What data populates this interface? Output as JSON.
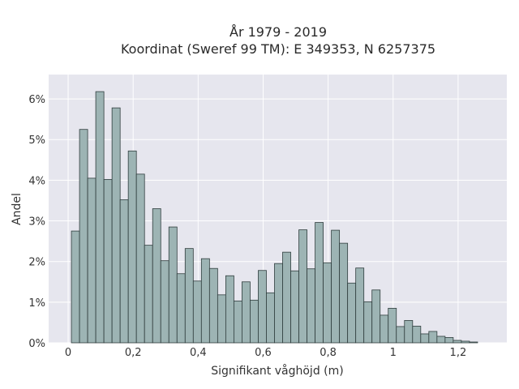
{
  "chart_data": {
    "type": "bar",
    "title": "År 1979 - 2019",
    "subtitle": "Koordinat (Sweref 99 TM): E 349353, N 6257375",
    "xlabel": "Signifikant våghöjd (m)",
    "ylabel": "Andel",
    "xlim": [
      -0.06,
      1.35
    ],
    "ylim": [
      0,
      6.6
    ],
    "grid": true,
    "x_ticks": [
      0,
      0.2,
      0.4,
      0.6,
      0.8,
      1,
      1.2
    ],
    "x_tick_labels": [
      "0",
      "0,2",
      "0,4",
      "0,6",
      "0,8",
      "1",
      "1,2"
    ],
    "y_ticks": [
      0,
      1,
      2,
      3,
      4,
      5,
      6
    ],
    "y_tick_labels": [
      "0%",
      "1%",
      "2%",
      "3%",
      "4%",
      "5%",
      "6%"
    ],
    "bin_start": 0.01,
    "bin_width": 0.025,
    "values": [
      2.75,
      5.25,
      4.05,
      6.18,
      4.02,
      5.78,
      3.52,
      4.72,
      4.15,
      2.4,
      3.3,
      2.02,
      2.85,
      1.7,
      2.32,
      1.52,
      2.07,
      1.83,
      1.18,
      1.65,
      1.03,
      1.5,
      1.05,
      1.78,
      1.23,
      1.95,
      2.23,
      1.77,
      2.78,
      1.82,
      2.96,
      1.97,
      2.77,
      2.45,
      1.47,
      1.84,
      1.01,
      1.3,
      0.68,
      0.85,
      0.4,
      0.55,
      0.41,
      0.22,
      0.28,
      0.16,
      0.13,
      0.06,
      0.04,
      0.02
    ],
    "colors": {
      "bar_fill": "#9db4b4",
      "bar_edge": "#2f3d3d",
      "plot_bg": "#e6e6ee",
      "grid": "#ffffff"
    }
  }
}
